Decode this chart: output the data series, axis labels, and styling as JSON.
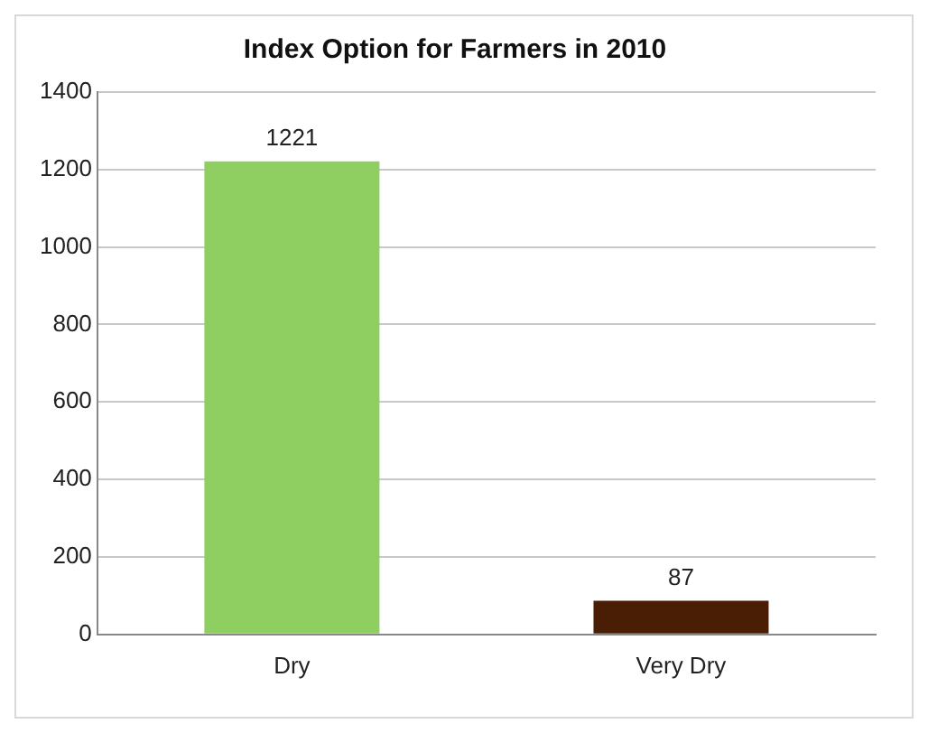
{
  "chart_data": {
    "type": "bar",
    "title": "Index Option for Farmers in 2010",
    "categories": [
      "Dry",
      "Very Dry"
    ],
    "values": [
      1221,
      87
    ],
    "colors": [
      "#8fcf62",
      "#4a1e05"
    ],
    "ylim": [
      0,
      1400
    ],
    "yticks": [
      0,
      200,
      400,
      600,
      800,
      1000,
      1200,
      1400
    ],
    "grid": "y",
    "data_labels": true,
    "legend": false
  }
}
